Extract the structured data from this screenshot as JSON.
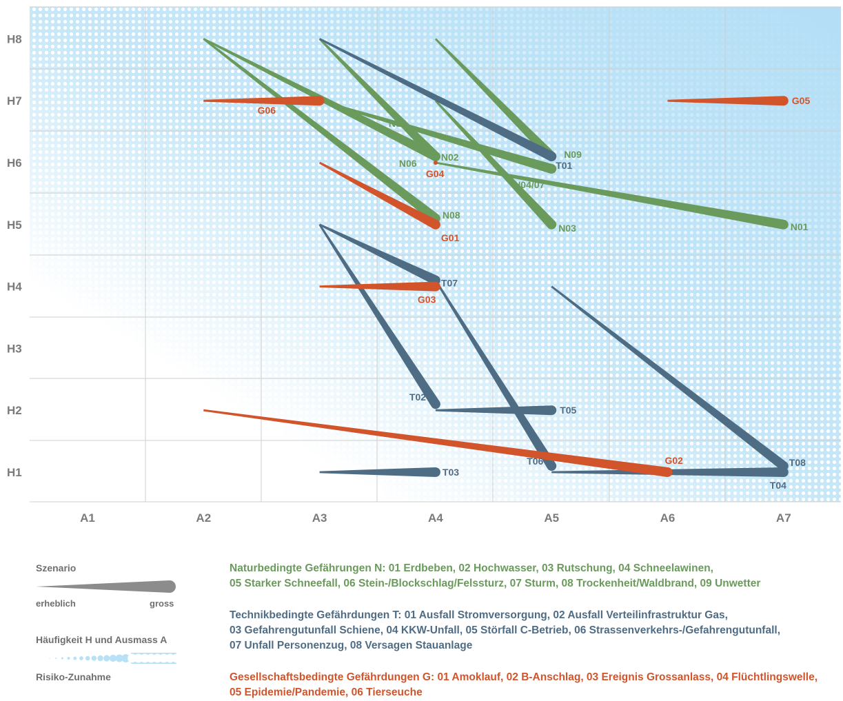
{
  "chart_data": {
    "type": "scatter",
    "x_categories": [
      "A1",
      "A2",
      "A3",
      "A4",
      "A5",
      "A6",
      "A7"
    ],
    "y_categories": [
      "H1",
      "H2",
      "H3",
      "H4",
      "H5",
      "H6",
      "H7",
      "H8"
    ],
    "grid": true,
    "background": "risk gradient increasing toward top-right (light blue halftone)",
    "colors": {
      "N": "#6a9a5c",
      "T": "#4f6c85",
      "G": "#d2542b",
      "axis_text": "#7a7a7a",
      "legend_shape": "#8c8c8c",
      "gradient": "#b9e1f6"
    },
    "series": [
      {
        "group": "N",
        "segments": [
          {
            "label": "N01",
            "from": [
              4.0,
              6.0
            ],
            "to": [
              7.0,
              5.0
            ]
          },
          {
            "label": "N02",
            "from": [
              2.0,
              8.0
            ],
            "to": [
              4.0,
              6.1
            ]
          },
          {
            "label": "N03",
            "from": [
              4.0,
              7.0
            ],
            "to": [
              5.0,
              5.0
            ]
          },
          {
            "label": "N04/07",
            "from": [
              3.0,
              7.0
            ],
            "to": [
              5.0,
              5.9
            ]
          },
          {
            "label": "N05",
            "from": [
              3.0,
              8.0
            ],
            "to": [
              4.0,
              6.1
            ]
          },
          {
            "label": "N06",
            "from": [
              4.0,
              6.0
            ],
            "to": [
              4.0,
              6.0
            ]
          },
          {
            "label": "N08",
            "from": [
              2.0,
              8.0
            ],
            "to": [
              4.0,
              5.1
            ]
          },
          {
            "label": "N09",
            "from": [
              4.0,
              8.0
            ],
            "to": [
              5.0,
              6.1
            ]
          }
        ]
      },
      {
        "group": "T",
        "segments": [
          {
            "label": "T01",
            "from": [
              3.0,
              8.0
            ],
            "to": [
              5.0,
              6.1
            ]
          },
          {
            "label": "T02",
            "from": [
              3.0,
              5.0
            ],
            "to": [
              4.0,
              2.1
            ]
          },
          {
            "label": "T03",
            "from": [
              3.0,
              1.0
            ],
            "to": [
              4.0,
              1.0
            ]
          },
          {
            "label": "T04",
            "from": [
              5.0,
              1.0
            ],
            "to": [
              7.0,
              1.0
            ]
          },
          {
            "label": "T05",
            "from": [
              4.0,
              2.0
            ],
            "to": [
              5.0,
              2.0
            ]
          },
          {
            "label": "T06",
            "from": [
              4.0,
              4.1
            ],
            "to": [
              5.0,
              1.1
            ]
          },
          {
            "label": "T07",
            "from": [
              3.0,
              5.0
            ],
            "to": [
              4.0,
              4.1
            ]
          },
          {
            "label": "T08",
            "from": [
              5.0,
              4.0
            ],
            "to": [
              7.0,
              1.1
            ]
          }
        ]
      },
      {
        "group": "G",
        "segments": [
          {
            "label": "G01",
            "from": [
              3.0,
              6.0
            ],
            "to": [
              4.0,
              5.0
            ]
          },
          {
            "label": "G02",
            "from": [
              2.0,
              2.0
            ],
            "to": [
              6.0,
              1.0
            ]
          },
          {
            "label": "G03",
            "from": [
              3.0,
              4.0
            ],
            "to": [
              4.0,
              4.0
            ]
          },
          {
            "label": "G04",
            "from": [
              4.0,
              6.0
            ],
            "to": [
              4.0,
              6.0
            ]
          },
          {
            "label": "G05",
            "from": [
              6.0,
              7.0
            ],
            "to": [
              7.0,
              7.0
            ]
          },
          {
            "label": "G06",
            "from": [
              2.0,
              7.0
            ],
            "to": [
              3.0,
              7.0
            ]
          }
        ]
      }
    ]
  },
  "legend": {
    "scenario_title": "Szenario",
    "scenario_low": "erheblich",
    "scenario_high": "gross",
    "hfa_title": "Häufigkeit H und Ausmass A",
    "risk_title": "Risiko-Zunahme"
  },
  "categories": {
    "natural": {
      "line1": "Naturbedingte Gefährungen N: 01 Erdbeben, 02 Hochwasser, 03 Rutschung, 04 Schneelawinen,",
      "line2": "05 Starker Schneefall, 06 Stein-/Blockschlag/Felssturz, 07 Sturm, 08 Trockenheit/Waldbrand, 09 Unwetter"
    },
    "technical": {
      "line1": "Technikbedingte Gefährdungen T: 01 Ausfall Stromversorgung, 02 Ausfall Verteilinfrastruktur Gas,",
      "line2": "03 Gefahrengutunfall Schiene, 04 KKW-Unfall, 05 Störfall C-Betrieb, 06 Strassenverkehrs-/Gefahrengutunfall,",
      "line3": "07 Unfall Personenzug, 08 Versagen Stauanlage"
    },
    "social": {
      "line1": "Gesellschaftsbedingte Gefährdungen G: 01 Amoklauf, 02 B-Anschlag, 03 Ereignis Grossanlass, 04 Flüchtlingswelle,",
      "line2": "05 Epidemie/Pandemie, 06 Tierseuche"
    }
  }
}
